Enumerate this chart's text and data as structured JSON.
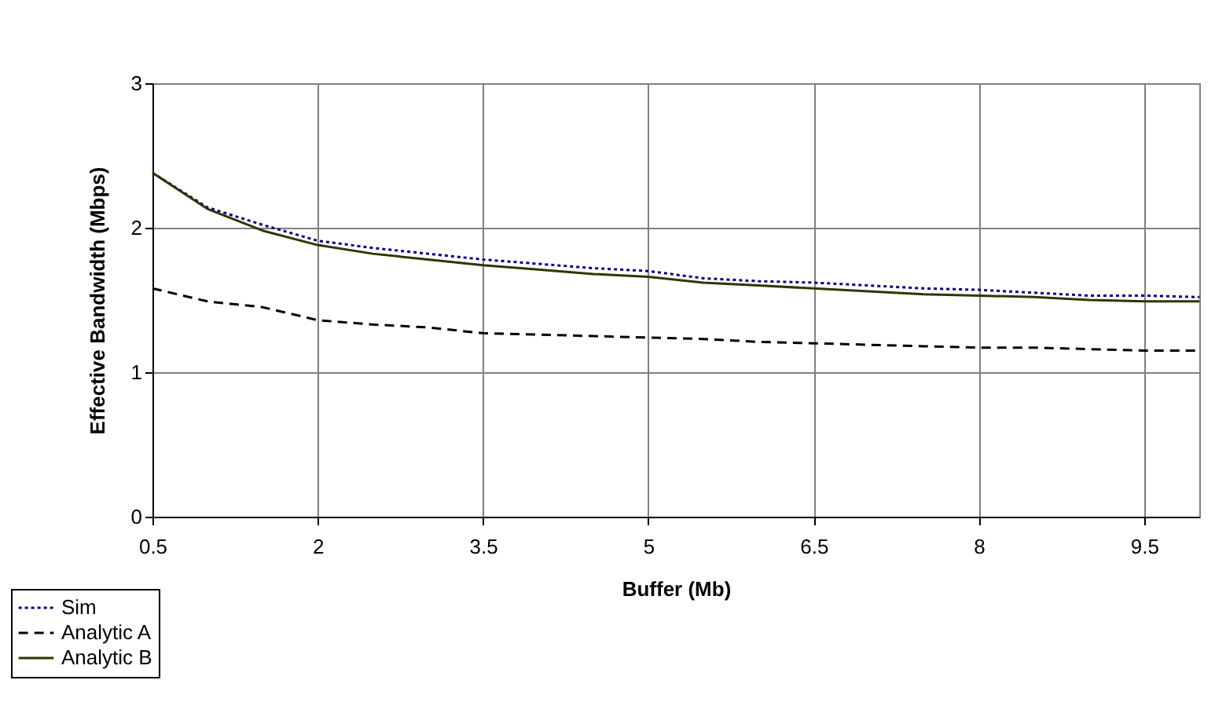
{
  "chart_data": {
    "type": "line",
    "xlabel": "Buffer (Mb)",
    "ylabel": "Effective Bandwidth (Mbps)",
    "x": [
      0.5,
      1,
      1.5,
      2,
      2.5,
      3,
      3.5,
      4,
      4.5,
      5,
      5.5,
      6,
      6.5,
      7,
      7.5,
      8,
      8.5,
      9,
      9.5,
      10
    ],
    "series": [
      {
        "name": "Sim",
        "color": "#000080",
        "line_style": "dotted",
        "values": [
          2.38,
          2.14,
          2.02,
          1.91,
          1.86,
          1.82,
          1.78,
          1.75,
          1.72,
          1.7,
          1.65,
          1.63,
          1.62,
          1.6,
          1.58,
          1.57,
          1.55,
          1.53,
          1.53,
          1.52
        ]
      },
      {
        "name": "Analytic A",
        "color": "#000000",
        "line_style": "dashed",
        "values": [
          1.58,
          1.49,
          1.45,
          1.36,
          1.33,
          1.31,
          1.27,
          1.26,
          1.25,
          1.24,
          1.23,
          1.21,
          1.2,
          1.19,
          1.18,
          1.17,
          1.17,
          1.16,
          1.15,
          1.15
        ]
      },
      {
        "name": "Analytic B",
        "color": "#333300",
        "line_style": "solid",
        "values": [
          2.38,
          2.13,
          1.98,
          1.88,
          1.82,
          1.78,
          1.74,
          1.71,
          1.68,
          1.66,
          1.62,
          1.6,
          1.58,
          1.56,
          1.54,
          1.53,
          1.52,
          1.5,
          1.49,
          1.49
        ]
      }
    ],
    "xlim": [
      0.5,
      10
    ],
    "xticks": [
      0.5,
      2,
      3.5,
      5,
      6.5,
      8,
      9.5
    ],
    "ylim": [
      0,
      3
    ],
    "yticks": [
      0,
      1,
      2,
      3
    ],
    "grid": true,
    "legend": "bottom left",
    "marker": "none"
  }
}
